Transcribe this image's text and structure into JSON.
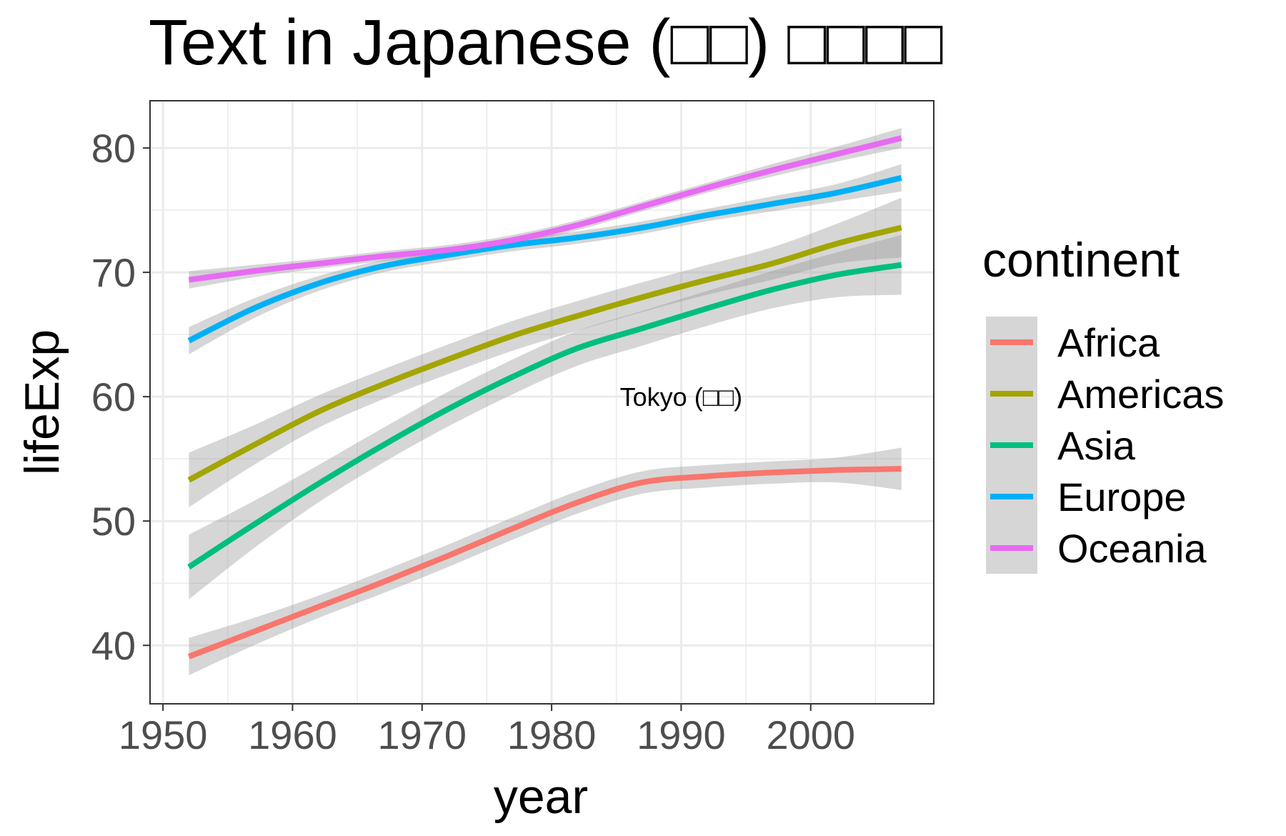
{
  "chart_data": {
    "type": "line",
    "title": "Text in Japanese (□□) □□□□",
    "xlabel": "year",
    "ylabel": "lifeExp",
    "xlim": [
      1949,
      2009.5
    ],
    "ylim": [
      35.3,
      83.8
    ],
    "x_ticks": [
      1950,
      1960,
      1970,
      1980,
      1990,
      2000
    ],
    "y_ticks": [
      40,
      50,
      60,
      70,
      80
    ],
    "grid": true,
    "legend": {
      "title": "continent",
      "position": "right"
    },
    "annotation": {
      "text": "Tokyo (□□)",
      "x": 1990,
      "y": 60
    },
    "confidence_band": true,
    "series": [
      {
        "name": "Africa",
        "color": "#F8766D",
        "x": [
          1952,
          1957,
          1962,
          1967,
          1972,
          1977,
          1982,
          1987,
          1992,
          1997,
          2002,
          2007
        ],
        "y": [
          39.1,
          41.1,
          43.1,
          45.1,
          47.2,
          49.4,
          51.5,
          53.1,
          53.6,
          53.9,
          54.1,
          54.2
        ],
        "ci": [
          1.5,
          1.1,
          0.9,
          0.9,
          0.9,
          0.9,
          0.9,
          0.9,
          0.9,
          0.9,
          1.0,
          1.7
        ]
      },
      {
        "name": "Americas",
        "color": "#A3A500",
        "x": [
          1952,
          1957,
          1962,
          1967,
          1972,
          1977,
          1982,
          1987,
          1992,
          1997,
          2002,
          2007
        ],
        "y": [
          53.3,
          56.1,
          58.8,
          61.0,
          63.0,
          64.9,
          66.5,
          68.0,
          69.4,
          70.7,
          72.3,
          73.6
        ],
        "ci": [
          2.2,
          1.6,
          1.3,
          1.2,
          1.2,
          1.2,
          1.2,
          1.2,
          1.2,
          1.3,
          1.6,
          2.4
        ]
      },
      {
        "name": "Asia",
        "color": "#00BF7D",
        "x": [
          1952,
          1957,
          1962,
          1967,
          1972,
          1977,
          1982,
          1987,
          1992,
          1997,
          2002,
          2007
        ],
        "y": [
          46.3,
          49.7,
          53.0,
          56.1,
          59.0,
          61.6,
          63.9,
          65.5,
          67.1,
          68.6,
          69.8,
          70.6
        ],
        "ci": [
          2.6,
          1.9,
          1.5,
          1.4,
          1.4,
          1.4,
          1.4,
          1.4,
          1.4,
          1.5,
          1.8,
          2.4
        ]
      },
      {
        "name": "Europe",
        "color": "#00B0F6",
        "x": [
          1952,
          1957,
          1962,
          1967,
          1972,
          1977,
          1982,
          1987,
          1992,
          1997,
          2002,
          2007
        ],
        "y": [
          64.5,
          67.1,
          69.1,
          70.5,
          71.4,
          72.2,
          72.8,
          73.6,
          74.6,
          75.5,
          76.4,
          77.6
        ],
        "ci": [
          1.1,
          0.8,
          0.6,
          0.5,
          0.5,
          0.5,
          0.5,
          0.5,
          0.5,
          0.6,
          0.7,
          1.1
        ]
      },
      {
        "name": "Oceania",
        "color": "#E76BF3",
        "x": [
          1952,
          1957,
          1962,
          1967,
          1972,
          1977,
          1982,
          1987,
          1992,
          1997,
          2002,
          2007
        ],
        "y": [
          69.4,
          70.1,
          70.7,
          71.3,
          71.8,
          72.6,
          73.8,
          75.3,
          76.8,
          78.2,
          79.5,
          80.8
        ],
        "ci": [
          0.7,
          0.5,
          0.4,
          0.4,
          0.4,
          0.4,
          0.4,
          0.4,
          0.4,
          0.5,
          0.6,
          0.8
        ]
      }
    ]
  }
}
